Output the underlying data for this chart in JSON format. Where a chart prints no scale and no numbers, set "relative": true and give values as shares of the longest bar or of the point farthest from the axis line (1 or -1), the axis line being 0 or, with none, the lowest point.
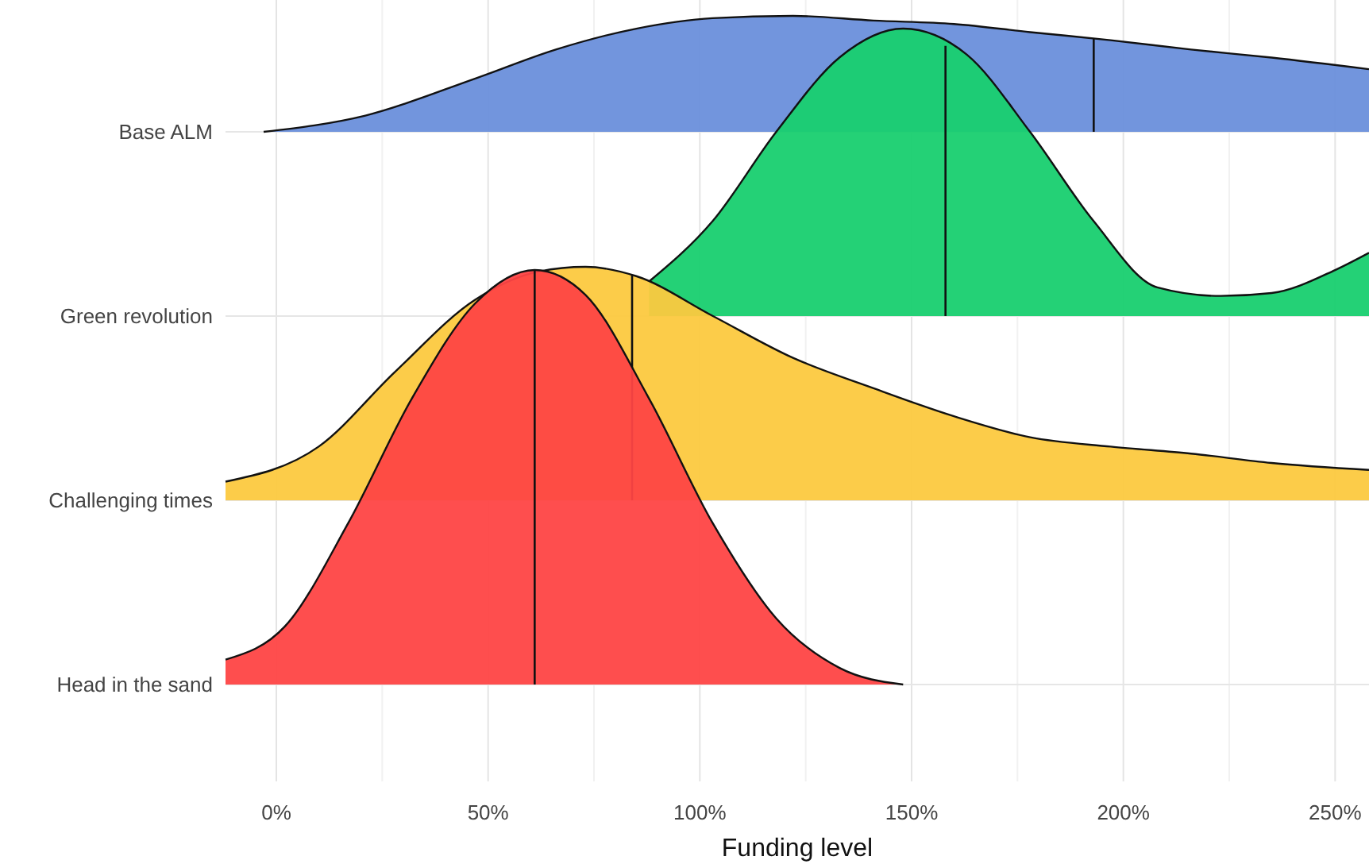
{
  "chart_data": [
    {
      "type": "area",
      "relative": true,
      "ylabel": "Base ALM",
      "tick_labels": false,
      "xlim": [
        -12,
        258
      ],
      "series": [
        {
          "color": "#6a8fdb",
          "x": [
            -3,
            21,
            47,
            66,
            85,
            103,
            122,
            141,
            160,
            178,
            197,
            216,
            235,
            258
          ],
          "values": [
            0,
            0.14,
            0.46,
            0.71,
            0.89,
            0.98,
            1,
            0.96,
            0.93,
            0.86,
            0.79,
            0.71,
            0.64,
            0.54
          ]
        }
      ],
      "ref_lines": [
        {
          "axis": "x",
          "value": 193,
          "label": null
        }
      ]
    },
    {
      "type": "area",
      "relative": true,
      "ylabel": "Green revolution",
      "tick_labels": false,
      "xlim": [
        -12,
        258
      ],
      "series": [
        {
          "color": "#18cf6f",
          "x": [
            88,
            103,
            118,
            133,
            148,
            163,
            178,
            193,
            208,
            223,
            235,
            250,
            258
          ],
          "values": [
            0.12,
            0.33,
            0.64,
            0.9,
            1,
            0.91,
            0.64,
            0.33,
            0.1,
            0.07,
            0.08,
            0.16,
            0.22
          ]
        }
      ],
      "ref_lines": [
        {
          "axis": "x",
          "value": 158,
          "label": null
        }
      ]
    },
    {
      "type": "area",
      "relative": true,
      "ylabel": "Challenging times",
      "tick_labels": false,
      "xlim": [
        -12,
        258
      ],
      "series": [
        {
          "color": "#fcc93f",
          "x": [
            -12,
            10,
            28,
            47,
            62,
            73,
            85,
            103,
            122,
            141,
            160,
            178,
            197,
            216,
            235,
            258
          ],
          "values": [
            0.08,
            0.23,
            0.55,
            0.86,
            0.98,
            1,
            0.96,
            0.79,
            0.61,
            0.48,
            0.36,
            0.27,
            0.23,
            0.2,
            0.16,
            0.13
          ]
        }
      ],
      "ref_lines": [
        {
          "axis": "x",
          "value": 84,
          "label": null
        }
      ]
    },
    {
      "type": "area",
      "relative": true,
      "ylabel": "Head in the sand",
      "xlabel": "Funding level",
      "grid": "x",
      "tick_labels": "x",
      "xlim": [
        -12,
        258
      ],
      "xticks": [
        {
          "value": 0,
          "label": "0%"
        },
        {
          "value": 25,
          "label": null
        },
        {
          "value": 50,
          "label": "50%"
        },
        {
          "value": 75,
          "label": null
        },
        {
          "value": 100,
          "label": "100%"
        },
        {
          "value": 125,
          "label": null
        },
        {
          "value": 150,
          "label": "150%"
        },
        {
          "value": 175,
          "label": null
        },
        {
          "value": 200,
          "label": "200%"
        },
        {
          "value": 225,
          "label": null
        },
        {
          "value": 250,
          "label": "250%"
        }
      ],
      "series": [
        {
          "color": "#fe4444",
          "x": [
            -12,
            2,
            17,
            32,
            47,
            61,
            73,
            88,
            103,
            118,
            133,
            148
          ],
          "values": [
            0.06,
            0.14,
            0.39,
            0.69,
            0.92,
            1,
            0.94,
            0.69,
            0.39,
            0.16,
            0.04,
            0
          ]
        }
      ],
      "ref_lines": [
        {
          "axis": "x",
          "value": 61,
          "label": null
        }
      ]
    }
  ]
}
